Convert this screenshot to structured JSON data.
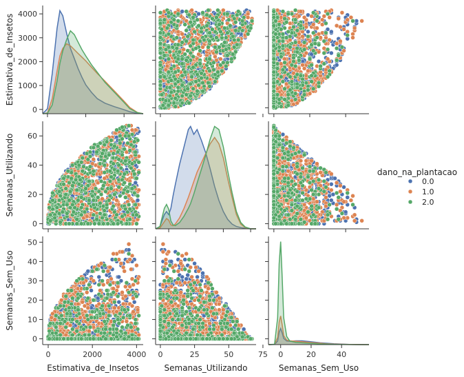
{
  "chart_data": {
    "type": "scatter",
    "kind": "pairplot",
    "variables": [
      {
        "key": "est",
        "label": "Estimativa_de_Insetos",
        "min": 0,
        "max": 4100,
        "lim_scatter": [
          -250,
          4300
        ],
        "lim_diag": [
          -250,
          5000
        ],
        "yticks": [
          0,
          1000,
          2000,
          3000,
          4000
        ],
        "xticks": [
          0,
          2000,
          4000
        ]
      },
      {
        "key": "util",
        "label": "Semanas_Utilizando",
        "min": 0,
        "max": 67,
        "lim_scatter": [
          -3.5,
          70
        ],
        "lim_diag": [
          -12,
          80
        ],
        "yticks": [
          0,
          20,
          40,
          60
        ],
        "xticks": [
          0,
          25,
          50,
          75
        ]
      },
      {
        "key": "sem",
        "label": "Semanas_Sem_Uso",
        "min": 0,
        "max": 50,
        "lim_scatter": [
          -3,
          53
        ],
        "lim_diag": [
          -8,
          58
        ],
        "yticks": [
          0,
          10,
          20,
          30,
          40,
          50
        ],
        "xticks": [
          0,
          20,
          40
        ]
      }
    ],
    "legend": {
      "title": "dano_na_plantacao",
      "placement": "right",
      "entries": [
        {
          "label": "0.0",
          "color": "#4c72b0"
        },
        {
          "label": "1.0",
          "color": "#dd8452"
        },
        {
          "label": "2.0",
          "color": "#55a868"
        }
      ]
    },
    "kde": {
      "est": {
        "x": [
          -250,
          0,
          250,
          500,
          650,
          800,
          1000,
          1200,
          1400,
          1600,
          1800,
          2000,
          2300,
          2600,
          3000,
          3500,
          4000,
          4300,
          4700,
          5000
        ],
        "series": {
          "0.0": [
            0,
            200,
            1600,
            3400,
            4100,
            3900,
            3200,
            2600,
            2200,
            1800,
            1450,
            1150,
            850,
            600,
            420,
            280,
            160,
            80,
            15,
            0
          ],
          "1.0": [
            0,
            30,
            600,
            1700,
            2300,
            2600,
            2780,
            2700,
            2550,
            2400,
            2250,
            2100,
            1850,
            1600,
            1300,
            900,
            500,
            250,
            50,
            0
          ],
          "2.0": [
            0,
            20,
            350,
            1300,
            2000,
            2500,
            2950,
            3300,
            3150,
            2850,
            2550,
            2300,
            1950,
            1650,
            1250,
            850,
            450,
            200,
            40,
            0
          ]
        }
      },
      "util": {
        "x": [
          -12,
          -8,
          -4,
          -2,
          0,
          2,
          4,
          6,
          10,
          14,
          18,
          20,
          23,
          26,
          30,
          34,
          38,
          42,
          46,
          50,
          54,
          58,
          62,
          66,
          70,
          75,
          80
        ],
        "series": {
          "0.0": [
            0,
            150,
            900,
            1100,
            900,
            1300,
            2100,
            2800,
            4100,
            5200,
            6300,
            6500,
            6000,
            6300,
            5600,
            4800,
            3800,
            2700,
            1800,
            1100,
            600,
            300,
            150,
            80,
            30,
            0,
            0
          ],
          "1.0": [
            0,
            50,
            450,
            650,
            550,
            250,
            200,
            300,
            700,
            1300,
            2000,
            2400,
            3000,
            3600,
            4200,
            4800,
            5400,
            5800,
            5400,
            4500,
            3200,
            2000,
            900,
            300,
            80,
            0,
            0
          ],
          "2.0": [
            0,
            150,
            1300,
            1550,
            1250,
            500,
            250,
            200,
            400,
            800,
            1300,
            1600,
            2200,
            2900,
            3800,
            4700,
            5700,
            6500,
            6300,
            5200,
            3700,
            2300,
            1100,
            400,
            120,
            0,
            0
          ]
        }
      },
      "sem": {
        "x": [
          -8,
          -4,
          -2,
          -1,
          0,
          1,
          2,
          4,
          6,
          10,
          14,
          18,
          22,
          26,
          30,
          35,
          40,
          45,
          50,
          55,
          58
        ],
        "series": {
          "0.0": [
            0,
            20,
            400,
            1400,
            1800,
            1300,
            700,
            400,
            380,
            420,
            420,
            350,
            280,
            200,
            150,
            90,
            50,
            20,
            8,
            0,
            0
          ],
          "1.0": [
            0,
            25,
            800,
            2500,
            3200,
            2200,
            1000,
            500,
            420,
            380,
            320,
            260,
            200,
            150,
            100,
            60,
            35,
            15,
            6,
            0,
            0
          ],
          "2.0": [
            0,
            40,
            3000,
            9000,
            11500,
            7500,
            3000,
            900,
            400,
            250,
            200,
            160,
            120,
            80,
            50,
            30,
            15,
            8,
            3,
            0,
            0
          ]
        }
      }
    }
  }
}
